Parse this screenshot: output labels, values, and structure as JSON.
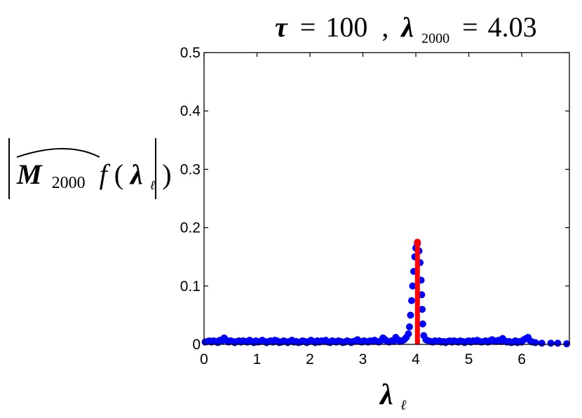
{
  "chart_data": {
    "type": "scatter",
    "title": {
      "tau_symbol": "τ",
      "equals": "=",
      "tau_value": "100",
      "separator": ",",
      "lambda_symbol": "λ",
      "lambda_subscript": "2000",
      "lambda_value": "4.03"
    },
    "ylabel": {
      "symbol": "M",
      "subscript": "2000",
      "func": "f",
      "open_paren": "(",
      "arg_symbol": "λ",
      "arg_subscript": "ℓ",
      "close_paren": ")"
    },
    "xlabel": {
      "symbol": "λ",
      "subscript": "ℓ"
    },
    "xlim": [
      0,
      6.9
    ],
    "ylim": [
      0,
      0.5
    ],
    "xticks": [
      "0",
      "1",
      "2",
      "3",
      "4",
      "5",
      "6"
    ],
    "yticks": [
      "0",
      "0.1",
      "0.2",
      "0.3",
      "0.4",
      "0.5"
    ],
    "grid": false,
    "marker_color": "#0000ff",
    "highlight_color": "#ff0000",
    "highlight": {
      "x": 4.03,
      "y": 0.175
    },
    "series": [
      {
        "points": [
          [
            0.02,
            0.004
          ],
          [
            0.06,
            0.005
          ],
          [
            0.1,
            0.006
          ],
          [
            0.14,
            0.004
          ],
          [
            0.18,
            0.006
          ],
          [
            0.22,
            0.005
          ],
          [
            0.26,
            0.003
          ],
          [
            0.3,
            0.007
          ],
          [
            0.34,
            0.006
          ],
          [
            0.38,
            0.011
          ],
          [
            0.42,
            0.007
          ],
          [
            0.46,
            0.004
          ],
          [
            0.5,
            0.006
          ],
          [
            0.54,
            0.005
          ],
          [
            0.58,
            0.003
          ],
          [
            0.62,
            0.005
          ],
          [
            0.66,
            0.006
          ],
          [
            0.7,
            0.004
          ],
          [
            0.74,
            0.006
          ],
          [
            0.78,
            0.005
          ],
          [
            0.82,
            0.004
          ],
          [
            0.86,
            0.007
          ],
          [
            0.9,
            0.005
          ],
          [
            0.94,
            0.003
          ],
          [
            0.98,
            0.006
          ],
          [
            1.02,
            0.004
          ],
          [
            1.06,
            0.005
          ],
          [
            1.1,
            0.007
          ],
          [
            1.14,
            0.005
          ],
          [
            1.18,
            0.003
          ],
          [
            1.22,
            0.005
          ],
          [
            1.26,
            0.006
          ],
          [
            1.3,
            0.004
          ],
          [
            1.34,
            0.007
          ],
          [
            1.38,
            0.006
          ],
          [
            1.42,
            0.003
          ],
          [
            1.46,
            0.004
          ],
          [
            1.5,
            0.006
          ],
          [
            1.54,
            0.005
          ],
          [
            1.58,
            0.003
          ],
          [
            1.62,
            0.005
          ],
          [
            1.66,
            0.007
          ],
          [
            1.7,
            0.004
          ],
          [
            1.74,
            0.005
          ],
          [
            1.78,
            0.003
          ],
          [
            1.82,
            0.004
          ],
          [
            1.86,
            0.006
          ],
          [
            1.9,
            0.005
          ],
          [
            1.94,
            0.003
          ],
          [
            1.98,
            0.005
          ],
          [
            2.02,
            0.007
          ],
          [
            2.06,
            0.005
          ],
          [
            2.1,
            0.003
          ],
          [
            2.14,
            0.006
          ],
          [
            2.18,
            0.004
          ],
          [
            2.22,
            0.006
          ],
          [
            2.26,
            0.005
          ],
          [
            2.3,
            0.007
          ],
          [
            2.34,
            0.004
          ],
          [
            2.38,
            0.003
          ],
          [
            2.42,
            0.006
          ],
          [
            2.46,
            0.005
          ],
          [
            2.5,
            0.004
          ],
          [
            2.54,
            0.006
          ],
          [
            2.58,
            0.005
          ],
          [
            2.62,
            0.003
          ],
          [
            2.66,
            0.004
          ],
          [
            2.7,
            0.006
          ],
          [
            2.74,
            0.005
          ],
          [
            2.78,
            0.003
          ],
          [
            2.82,
            0.005
          ],
          [
            2.86,
            0.006
          ],
          [
            2.9,
            0.008
          ],
          [
            2.94,
            0.005
          ],
          [
            2.98,
            0.004
          ],
          [
            3.02,
            0.006
          ],
          [
            3.06,
            0.005
          ],
          [
            3.1,
            0.004
          ],
          [
            3.14,
            0.006
          ],
          [
            3.18,
            0.005
          ],
          [
            3.22,
            0.007
          ],
          [
            3.26,
            0.005
          ],
          [
            3.3,
            0.004
          ],
          [
            3.34,
            0.006
          ],
          [
            3.38,
            0.011
          ],
          [
            3.42,
            0.008
          ],
          [
            3.46,
            0.005
          ],
          [
            3.5,
            0.004
          ],
          [
            3.54,
            0.006
          ],
          [
            3.58,
            0.005
          ],
          [
            3.62,
            0.012
          ],
          [
            3.66,
            0.008
          ],
          [
            3.7,
            0.005
          ],
          [
            3.74,
            0.006
          ],
          [
            3.78,
            0.008
          ],
          [
            3.82,
            0.012
          ],
          [
            3.86,
            0.018
          ],
          [
            3.88,
            0.03
          ],
          [
            3.9,
            0.05
          ],
          [
            3.92,
            0.075
          ],
          [
            3.94,
            0.1
          ],
          [
            3.96,
            0.125
          ],
          [
            3.98,
            0.15
          ],
          [
            4.0,
            0.165
          ],
          [
            4.03,
            0.173
          ],
          [
            4.06,
            0.16
          ],
          [
            4.08,
            0.14
          ],
          [
            4.1,
            0.11
          ],
          [
            4.11,
            0.085
          ],
          [
            4.12,
            0.06
          ],
          [
            4.13,
            0.035
          ],
          [
            4.15,
            0.015
          ],
          [
            4.19,
            0.008
          ],
          [
            4.24,
            0.006
          ],
          [
            4.28,
            0.005
          ],
          [
            4.32,
            0.004
          ],
          [
            4.36,
            0.006
          ],
          [
            4.4,
            0.005
          ],
          [
            4.44,
            0.006
          ],
          [
            4.48,
            0.004
          ],
          [
            4.52,
            0.005
          ],
          [
            4.56,
            0.003
          ],
          [
            4.6,
            0.005
          ],
          [
            4.64,
            0.006
          ],
          [
            4.68,
            0.004
          ],
          [
            4.72,
            0.006
          ],
          [
            4.76,
            0.005
          ],
          [
            4.8,
            0.004
          ],
          [
            4.84,
            0.006
          ],
          [
            4.88,
            0.005
          ],
          [
            4.92,
            0.003
          ],
          [
            4.96,
            0.005
          ],
          [
            5.0,
            0.006
          ],
          [
            5.04,
            0.004
          ],
          [
            5.08,
            0.006
          ],
          [
            5.12,
            0.005
          ],
          [
            5.16,
            0.007
          ],
          [
            5.2,
            0.005
          ],
          [
            5.24,
            0.004
          ],
          [
            5.28,
            0.005
          ],
          [
            5.32,
            0.006
          ],
          [
            5.36,
            0.004
          ],
          [
            5.4,
            0.006
          ],
          [
            5.44,
            0.008
          ],
          [
            5.48,
            0.006
          ],
          [
            5.52,
            0.005
          ],
          [
            5.56,
            0.007
          ],
          [
            5.6,
            0.005
          ],
          [
            5.64,
            0.01
          ],
          [
            5.68,
            0.006
          ],
          [
            5.72,
            0.004
          ],
          [
            5.76,
            0.005
          ],
          [
            5.8,
            0.003
          ],
          [
            5.84,
            0.004
          ],
          [
            5.88,
            0.006
          ],
          [
            5.92,
            0.003
          ],
          [
            5.96,
            0.005
          ],
          [
            6.0,
            0.004
          ],
          [
            6.04,
            0.008
          ],
          [
            6.08,
            0.01
          ],
          [
            6.12,
            0.012
          ],
          [
            6.16,
            0.006
          ],
          [
            6.2,
            0.004
          ],
          [
            6.26,
            0.003
          ],
          [
            6.38,
            0.002
          ],
          [
            6.55,
            0.002
          ],
          [
            6.68,
            0.002
          ],
          [
            6.85,
            0.001
          ]
        ]
      }
    ]
  }
}
